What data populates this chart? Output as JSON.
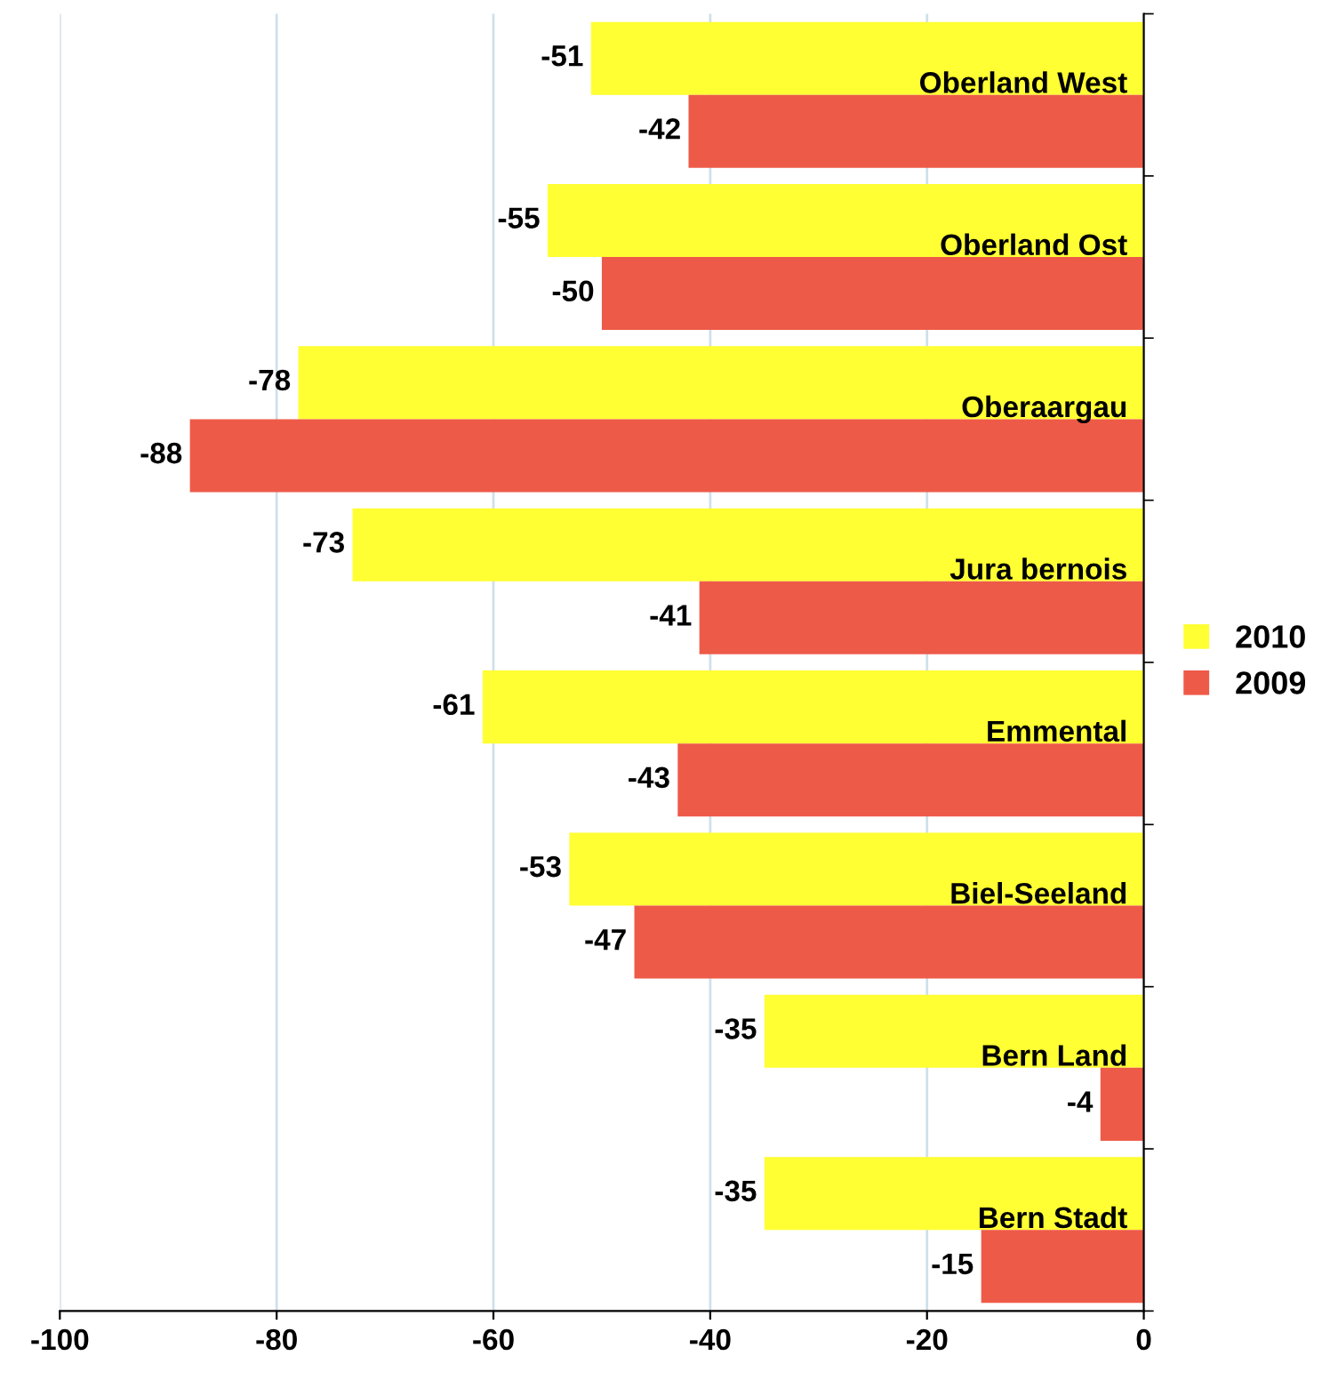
{
  "chart_data": {
    "type": "bar",
    "orientation": "horizontal",
    "categories": [
      "Oberland West",
      "Oberland Ost",
      "Oberaargau",
      "Jura bernois",
      "Emmental",
      "Biel-Seeland",
      "Bern Land",
      "Bern Stadt"
    ],
    "series": [
      {
        "name": "2010",
        "color": "#ffff33",
        "values": [
          -51,
          -55,
          -78,
          -73,
          -61,
          -53,
          -35,
          -35
        ]
      },
      {
        "name": "2009",
        "color": "#ee5a48",
        "values": [
          -42,
          -50,
          -88,
          -41,
          -43,
          -47,
          -4,
          -15
        ]
      }
    ],
    "xlim": [
      -100,
      0
    ],
    "xticks": [
      -100,
      -80,
      -60,
      -40,
      -20,
      0
    ],
    "grid": "x",
    "legend": "right",
    "data_labels": true
  }
}
